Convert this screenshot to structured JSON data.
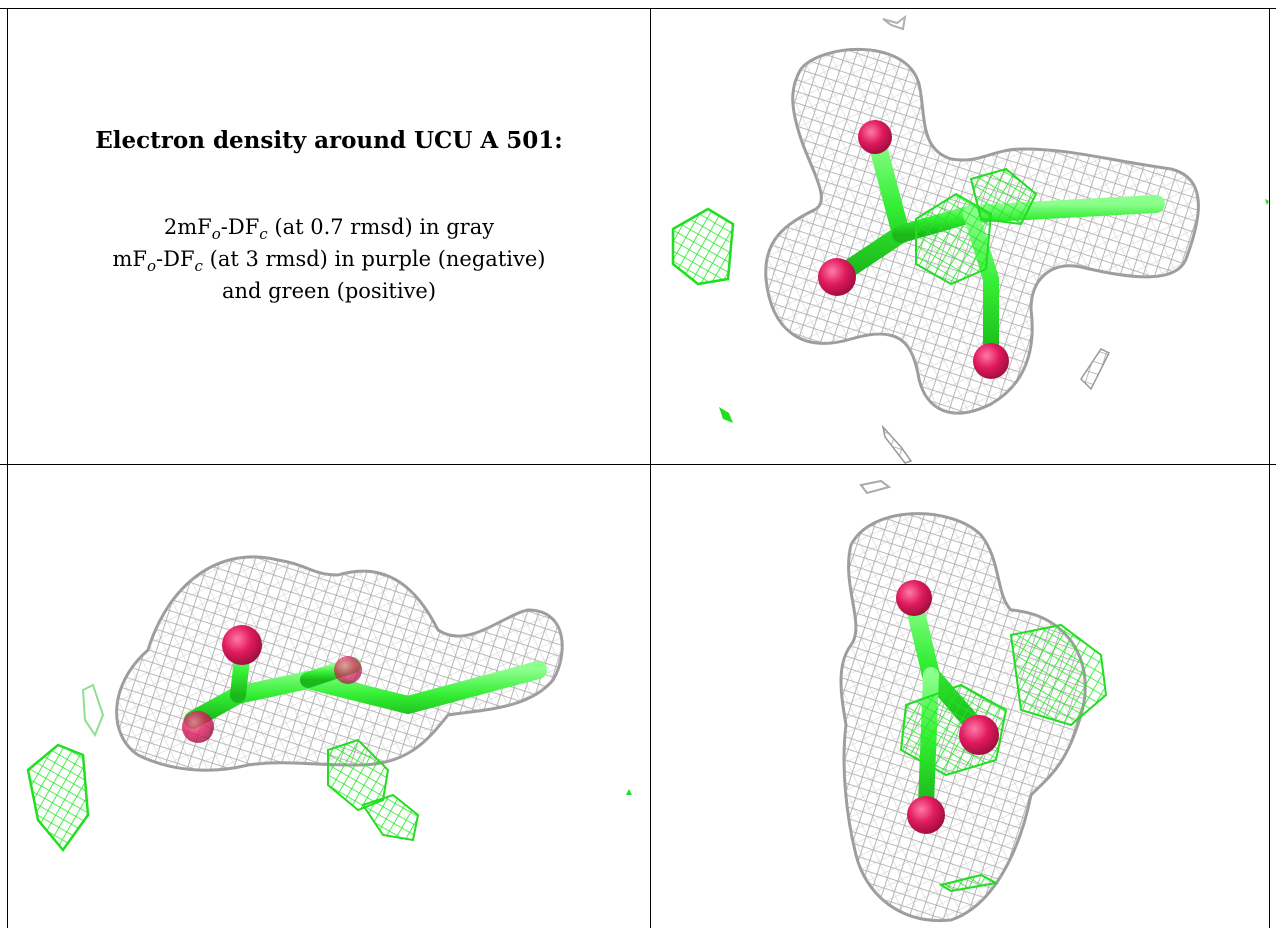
{
  "legend": {
    "title": "Electron density around UCU A 501:",
    "line1_prefix": "2mF",
    "line1_sub_o": "o",
    "line1_mid": "-DF",
    "line1_sub_c": "c",
    "line1_suffix": " (at 0.7 rmsd) in gray",
    "line2_prefix": "mF",
    "line2_sub_o": "o",
    "line2_mid": "-DF",
    "line2_sub_c": "c",
    "line2_suffix": " (at 3 rmsd) in purple (negative)",
    "line3": "and green (positive)"
  },
  "colors": {
    "mesh_gray": "#a8a8a8",
    "mesh_green": "#22ee22",
    "atom_magenta": "#e0195f",
    "bond_green": "#44ee44",
    "border": "#000000"
  },
  "panels": [
    {
      "name": "top-right-view"
    },
    {
      "name": "bottom-left-view"
    },
    {
      "name": "bottom-right-view"
    }
  ]
}
